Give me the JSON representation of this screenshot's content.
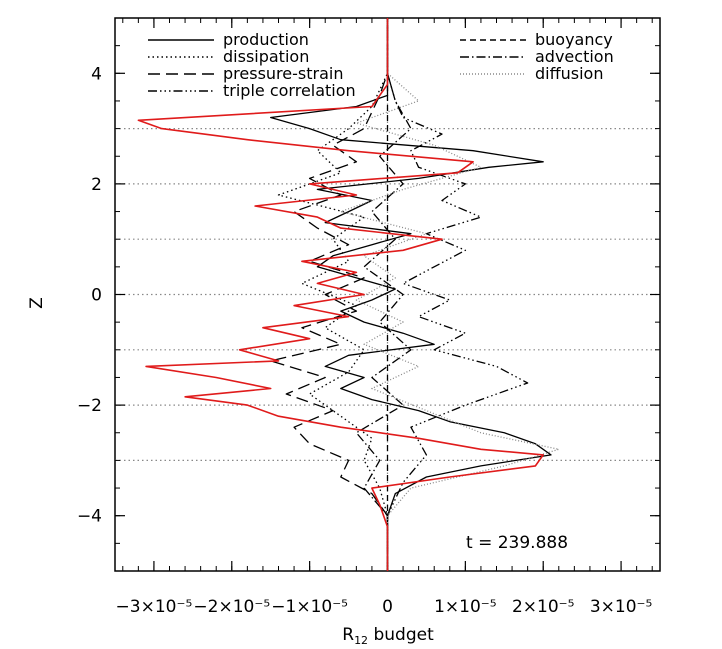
{
  "chart_data": {
    "type": "line",
    "title": "",
    "xlabel": "R",
    "xlabel_sub": "12",
    "xlabel_suffix": " budget",
    "ylabel": "Z",
    "xlim": [
      -3.5e-05,
      3.5e-05
    ],
    "ylim": [
      -5,
      5
    ],
    "x_ticks": [
      {
        "value": -3e-05,
        "label": "−3×10⁻⁵"
      },
      {
        "value": -2e-05,
        "label": "−2×10⁻⁵"
      },
      {
        "value": -1e-05,
        "label": "−1×10⁻⁵"
      },
      {
        "value": 0,
        "label": "0"
      },
      {
        "value": 1e-05,
        "label": "1×10⁻⁵"
      },
      {
        "value": 2e-05,
        "label": "2×10⁻⁵"
      },
      {
        "value": 3e-05,
        "label": "3×10⁻⁵"
      }
    ],
    "y_ticks": [
      {
        "value": -4,
        "label": "−4"
      },
      {
        "value": -2,
        "label": "−2"
      },
      {
        "value": 0,
        "label": "0"
      },
      {
        "value": 2,
        "label": "2"
      },
      {
        "value": 4,
        "label": "4"
      }
    ],
    "horizontal_reference_lines": [
      -3,
      -2,
      -1,
      0,
      1,
      2,
      3
    ],
    "vertical_reference_line": 0,
    "legend_position": "top",
    "annotation": "t = 239.888",
    "series": [
      {
        "name": "production",
        "style": "solid",
        "color": "#000000",
        "z": [
          -5,
          -4,
          -3.6,
          -3.3,
          -3.1,
          -2.9,
          -2.7,
          -2.5,
          -2.3,
          -2.1,
          -2.0,
          -1.9,
          -1.7,
          -1.5,
          -1.3,
          -1.1,
          -0.9,
          -0.7,
          -0.5,
          -0.3,
          -0.1,
          0.1,
          0.3,
          0.5,
          0.7,
          0.9,
          1.1,
          1.3,
          1.5,
          1.7,
          1.9,
          2.1,
          2.3,
          2.4,
          2.6,
          2.8,
          3.0,
          3.2,
          3.4,
          3.6,
          4.0,
          5.0
        ],
        "x": [
          0,
          0,
          1e-06,
          5e-06,
          1.2e-05,
          2.1e-05,
          1.9e-05,
          1.5e-05,
          8e-06,
          4e-06,
          1e-06,
          -2e-06,
          -6e-06,
          -3e-06,
          -8e-06,
          -5e-06,
          6e-06,
          2e-06,
          -3e-06,
          -6e-06,
          -2e-06,
          1e-06,
          -4e-06,
          -9e-06,
          -7e-06,
          -2e-06,
          3e-06,
          -8e-06,
          -5e-06,
          -2e-06,
          -9e-06,
          4e-06,
          1.3e-05,
          2e-05,
          1.1e-05,
          -6e-06,
          -1e-05,
          -1.5e-05,
          -4e-06,
          0,
          0,
          0
        ]
      },
      {
        "name": "dissipation",
        "style": "dotted",
        "color": "#000000",
        "z": [
          -5,
          -4,
          -3.5,
          -3.0,
          -2.6,
          -2.2,
          -1.8,
          -1.4,
          -1.0,
          -0.6,
          -0.2,
          0.2,
          0.6,
          1.0,
          1.4,
          1.8,
          2.2,
          2.6,
          3.0,
          3.4,
          4.0,
          5.0
        ],
        "x": [
          0,
          0,
          -1e-06,
          -3e-06,
          -2e-06,
          -6e-06,
          -1e-05,
          -5e-06,
          -3e-06,
          -8e-06,
          -4e-06,
          -1.1e-05,
          -5e-06,
          -7e-06,
          -3e-06,
          -1.4e-05,
          -6e-06,
          -9e-06,
          -5e-06,
          -2e-06,
          0,
          0
        ]
      },
      {
        "name": "pressure-strain",
        "style": "dash-long",
        "color": "#000000",
        "z": [
          -5,
          -4,
          -3.6,
          -3.3,
          -3.0,
          -2.7,
          -2.4,
          -2.1,
          -1.8,
          -1.5,
          -1.2,
          -0.9,
          -0.6,
          -0.3,
          0,
          0.3,
          0.6,
          0.9,
          1.2,
          1.5,
          1.8,
          2.1,
          2.4,
          2.7,
          3.0,
          3.3,
          3.6,
          4.0,
          5.0
        ],
        "x": [
          0,
          0,
          -2e-06,
          -6e-06,
          -5e-06,
          -1e-05,
          -1.2e-05,
          -7e-06,
          -1.3e-05,
          -8e-06,
          -1.5e-05,
          -6e-06,
          -1.1e-05,
          -4e-06,
          -8e-06,
          -3e-06,
          -1e-05,
          -5e-06,
          -9e-06,
          -1.2e-05,
          -6e-06,
          -1e-05,
          -4e-06,
          -7e-06,
          -3e-06,
          -2e-06,
          -1e-06,
          0,
          0
        ]
      },
      {
        "name": "triple correlation",
        "style": "dash-dot-dot-dot",
        "color": "#000000",
        "z": [
          -5,
          -4,
          -3.4,
          -2.9,
          -2.4,
          -2.0,
          -1.6,
          -1.3,
          -1.0,
          -0.7,
          -0.4,
          -0.1,
          0.2,
          0.5,
          0.8,
          1.1,
          1.4,
          1.7,
          2.0,
          2.3,
          2.6,
          2.9,
          3.2,
          3.5,
          4.0,
          5.0
        ],
        "x": [
          0,
          0,
          2e-06,
          5e-06,
          3e-06,
          1e-05,
          1.8e-05,
          1.4e-05,
          6e-06,
          1e-05,
          4e-06,
          8e-06,
          2e-06,
          6e-06,
          1e-05,
          5e-06,
          1.2e-05,
          7e-06,
          1e-05,
          4e-06,
          3e-06,
          7e-06,
          2e-06,
          1e-06,
          0,
          0
        ]
      },
      {
        "name": "buoyancy",
        "style": "dashed",
        "color": "#000000",
        "z": [
          -5,
          5
        ],
        "x": [
          0,
          0
        ]
      },
      {
        "name": "advection",
        "style": "dash-dot",
        "color": "#000000",
        "z": [
          -5,
          -4,
          -3.5,
          -3.0,
          -2.5,
          -2.0,
          -1.5,
          -1.0,
          -0.5,
          0,
          0.5,
          1.0,
          1.5,
          2.0,
          2.5,
          3.0,
          3.5,
          4.0,
          5.0
        ],
        "x": [
          0,
          0,
          -3e-06,
          -1e-06,
          -4e-06,
          2e-06,
          -2e-06,
          3e-06,
          -1e-06,
          2e-06,
          -3e-06,
          1e-06,
          -2e-06,
          2e-06,
          -1e-06,
          3e-06,
          1e-06,
          0,
          0
        ]
      },
      {
        "name": "diffusion",
        "style": "dotted-fine",
        "color": "#888888",
        "z": [
          -5,
          -4,
          -3.5,
          -3.1,
          -2.8,
          -2.5,
          -2.1,
          -1.7,
          -1.3,
          -0.9,
          -0.5,
          -0.1,
          0.3,
          0.7,
          1.1,
          1.5,
          1.9,
          2.3,
          2.7,
          3.1,
          3.5,
          4.0,
          5.0
        ],
        "x": [
          0,
          0,
          3e-06,
          1.5e-05,
          2.2e-05,
          1.2e-05,
          5e-06,
          -2e-06,
          4e-06,
          -3e-06,
          2e-06,
          -4e-06,
          1e-06,
          -3e-06,
          5e-06,
          -6e-06,
          2e-06,
          1.2e-05,
          6e-06,
          -4e-06,
          4e-06,
          0,
          0
        ]
      },
      {
        "name": "",
        "style": "solid",
        "color": "#e01b1b",
        "z": [
          -5,
          -4.2,
          -3.8,
          -3.5,
          -3.3,
          -3.1,
          -2.9,
          -2.8,
          -2.6,
          -2.4,
          -2.2,
          -2.0,
          -1.85,
          -1.7,
          -1.5,
          -1.3,
          -1.2,
          -1.0,
          -0.8,
          -0.6,
          -0.4,
          -0.2,
          0,
          0.2,
          0.4,
          0.6,
          0.8,
          1.0,
          1.2,
          1.4,
          1.6,
          1.8,
          2.0,
          2.2,
          2.4,
          2.6,
          2.8,
          3.0,
          3.15,
          3.4,
          3.8,
          4.5,
          5.0
        ],
        "x": [
          0,
          0,
          -1e-06,
          -2e-06,
          8e-06,
          1.9e-05,
          2e-05,
          1.2e-05,
          4e-06,
          -6e-06,
          -1.4e-05,
          -1.8e-05,
          -2.6e-05,
          -1.5e-05,
          -2.2e-05,
          -3.1e-05,
          -1.4e-05,
          -1.9e-05,
          -1e-05,
          -1.6e-05,
          -5e-06,
          -1.2e-05,
          -3e-06,
          -9e-06,
          -4e-06,
          -1.1e-05,
          2e-06,
          7e-06,
          -6e-06,
          -9e-06,
          -1.7e-05,
          -4e-06,
          -1e-05,
          9e-06,
          1.1e-05,
          -5e-06,
          -1.8e-05,
          -2.9e-05,
          -3.2e-05,
          -2e-06,
          0,
          0,
          0
        ]
      }
    ]
  }
}
